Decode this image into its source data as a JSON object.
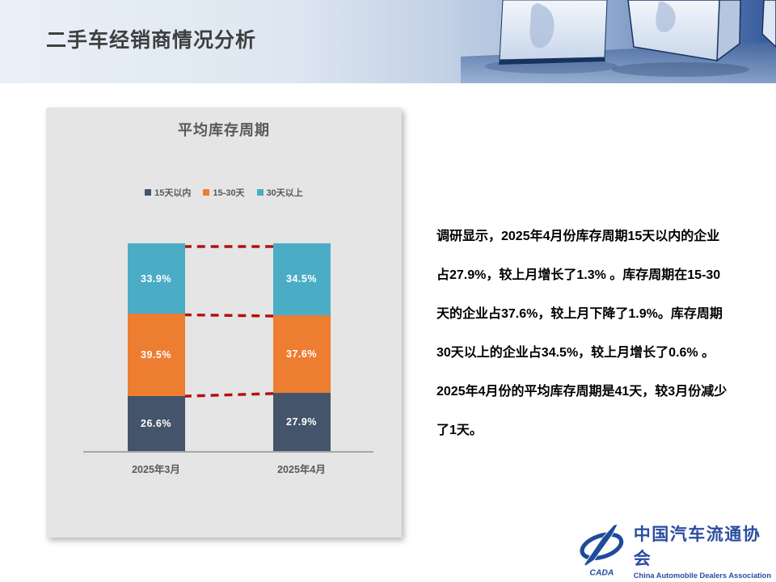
{
  "slide": {
    "title": "二手车经销商情况分析"
  },
  "chart_data": {
    "type": "bar",
    "stacked": true,
    "title": "平均库存周期",
    "categories": [
      "2025年3月",
      "2025年4月"
    ],
    "series": [
      {
        "name": "15天以内",
        "color": "#44546a",
        "values": [
          26.6,
          27.9
        ]
      },
      {
        "name": "15-30天",
        "color": "#ed7d31",
        "values": [
          39.5,
          37.6
        ]
      },
      {
        "name": "30天以上",
        "color": "#4bacc6",
        "values": [
          33.9,
          34.5
        ]
      }
    ],
    "xlabel": "",
    "ylabel": "",
    "ylim": [
      0,
      100
    ],
    "grid": false,
    "legend_position": "top",
    "connector_color": "#b60e0e"
  },
  "analysis": {
    "text": "调研显示，2025年4月份库存周期15天以内的企业\n占27.9%，较上月增长了1.3% 。库存周期在15-30\n天的企业占37.6%，较上月下降了1.9%。库存周期\n30天以上的企业占34.5%，较上月增长了0.6% 。\n2025年4月份的平均库存周期是41天，较3月份减少\n了1天。"
  },
  "footer": {
    "logo_acronym": "CADA",
    "org_name_zh": "中国汽车流通协会",
    "org_name_en": "China Automobile Dealers Association"
  },
  "colors": {
    "title_gray": "#3f3f3f",
    "chart_text_gray": "#595959",
    "card_bg": "#e5e5e5",
    "axis_gray": "#a6a6a6",
    "connector_red": "#b60e0e",
    "logo_blue": "#1e4b9a",
    "header_blue_dark": "#40659f"
  }
}
